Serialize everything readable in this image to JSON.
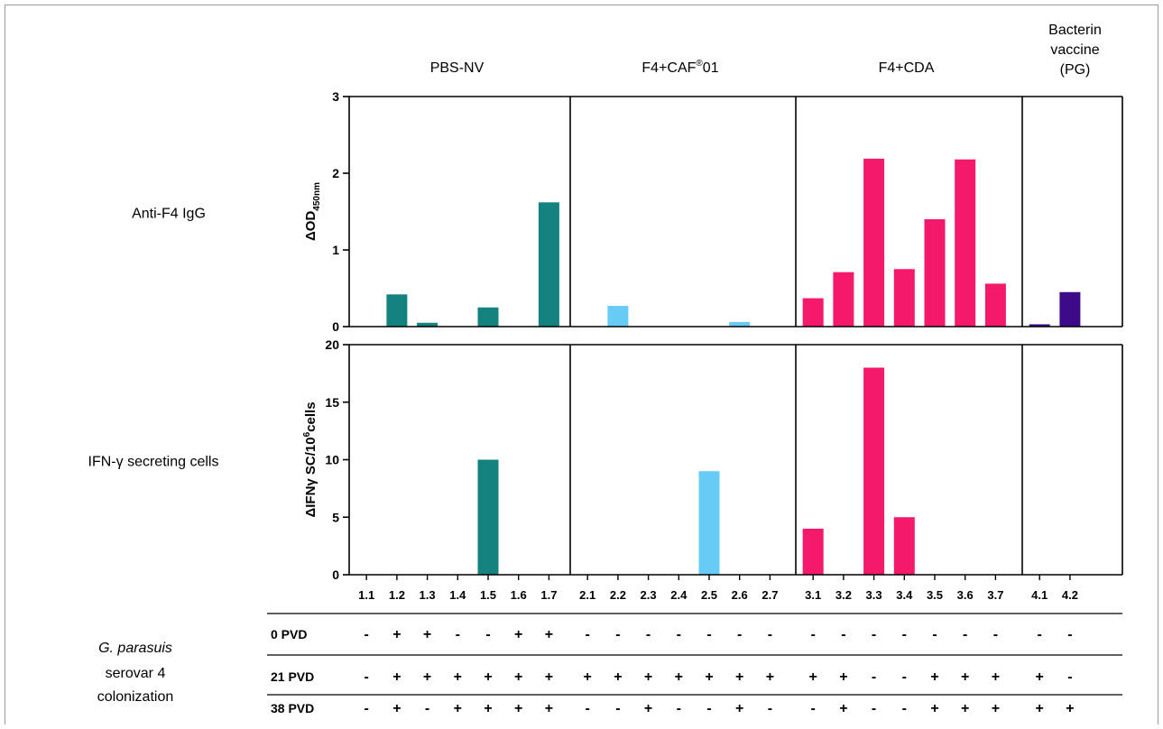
{
  "chart_data": {
    "type": "bar",
    "groups": [
      {
        "label": "PBS-NV",
        "color": "#14837f",
        "samples": [
          "1.1",
          "1.2",
          "1.3",
          "1.4",
          "1.5",
          "1.6",
          "1.7"
        ]
      },
      {
        "label_main": "F4+CAF",
        "label_sup": "®",
        "label_end": "01",
        "color": "#66ccf5",
        "samples": [
          "2.1",
          "2.2",
          "2.3",
          "2.4",
          "2.5",
          "2.6",
          "2.7"
        ]
      },
      {
        "label": "F4+CDA",
        "color": "#f5196b",
        "samples": [
          "3.1",
          "3.2",
          "3.3",
          "3.4",
          "3.5",
          "3.6",
          "3.7"
        ]
      },
      {
        "label_lines": [
          "Bacterin",
          "vaccine",
          "(PG)"
        ],
        "color": "#3d0b8a",
        "samples": [
          "4.1",
          "4.2"
        ]
      }
    ],
    "panels": [
      {
        "row_label": "Anti-F4 IgG",
        "ylabel_main": "ΔOD",
        "ylabel_sub": "450nm",
        "ylim": [
          0,
          3
        ],
        "yticks": [
          "0",
          "1",
          "2",
          "3"
        ],
        "values": [
          [
            0,
            0.42,
            0.05,
            0,
            0.25,
            0,
            1.62
          ],
          [
            0,
            0.27,
            0,
            0,
            0,
            0.06,
            0
          ],
          [
            0.37,
            0.71,
            2.19,
            0.75,
            1.4,
            2.18,
            0.56
          ],
          [
            0.03,
            0.45
          ]
        ]
      },
      {
        "row_label": "IFN-γ secreting cells",
        "ylabel_main": "ΔIFNγ SC/10",
        "ylabel_sup": "6",
        "ylabel_end": "cells",
        "ylim": [
          0,
          20
        ],
        "yticks": [
          "0",
          "5",
          "10",
          "15",
          "20"
        ],
        "values": [
          [
            0,
            0,
            0,
            0,
            10,
            0,
            0
          ],
          [
            0,
            0,
            0,
            0,
            9,
            0,
            0
          ],
          [
            4,
            0,
            18,
            5,
            0,
            0,
            0
          ],
          [
            0,
            0
          ]
        ]
      }
    ],
    "colonization": {
      "label_italic": "G. parasuis",
      "label_lines": [
        "serovar 4",
        "colonization"
      ],
      "rows": [
        {
          "label": "0 PVD",
          "signs": [
            [
              "-",
              "+",
              "+",
              "-",
              "-",
              "+",
              "+"
            ],
            [
              "-",
              "-",
              "-",
              "-",
              "-",
              "-",
              "-"
            ],
            [
              "-",
              "-",
              "-",
              "-",
              "-",
              "-",
              "-"
            ],
            [
              "-",
              "-"
            ]
          ]
        },
        {
          "label": "21 PVD",
          "signs": [
            [
              "-",
              "+",
              "+",
              "+",
              "+",
              "+",
              "+"
            ],
            [
              "+",
              "+",
              "+",
              "+",
              "+",
              "+",
              "+"
            ],
            [
              "+",
              "+",
              "-",
              "-",
              "+",
              "+",
              "+"
            ],
            [
              "+",
              "-"
            ]
          ]
        },
        {
          "label": "38 PVD",
          "signs": [
            [
              "-",
              "+",
              "-",
              "+",
              "+",
              "+",
              "+"
            ],
            [
              "-",
              "-",
              "+",
              "-",
              "-",
              "+",
              "-"
            ],
            [
              "-",
              "+",
              "-",
              "-",
              "+",
              "+",
              "+"
            ],
            [
              "+",
              "+"
            ]
          ]
        }
      ]
    }
  }
}
